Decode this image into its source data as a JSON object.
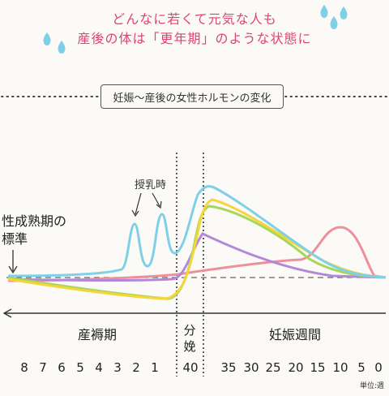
{
  "heading": {
    "line1": "どんなに若くて元気な人も",
    "line2": "産後の体は「更年期」のような状態に"
  },
  "section_title": "妊娠〜産後の女性ホルモンの変化",
  "annotations": {
    "nursing": "授乳時",
    "baseline_line1": "性成熟期の",
    "baseline_line2": "標準"
  },
  "phases": {
    "postpartum": "産褥期",
    "delivery_line1": "分",
    "delivery_line2": "娩",
    "pregnancy": "妊娠週間"
  },
  "unit_label": "単位:週",
  "chart_data": {
    "type": "line",
    "ticks_postpartum": [
      "8",
      "7",
      "6",
      "5",
      "4",
      "3",
      "2",
      "1"
    ],
    "tick_delivery": "40",
    "ticks_pregnancy": [
      "35",
      "30",
      "25",
      "20",
      "15",
      "10",
      "5",
      "0"
    ],
    "series": [
      {
        "color": "#7fd0e6"
      },
      {
        "color": "#f4d63c"
      },
      {
        "color": "#a6d65a"
      },
      {
        "color": "#b488d8"
      },
      {
        "color": "#ee8f9c"
      }
    ]
  },
  "colors": {
    "heading": "#e0427a",
    "drops": "#7fd0e6",
    "axis": "#333333"
  }
}
